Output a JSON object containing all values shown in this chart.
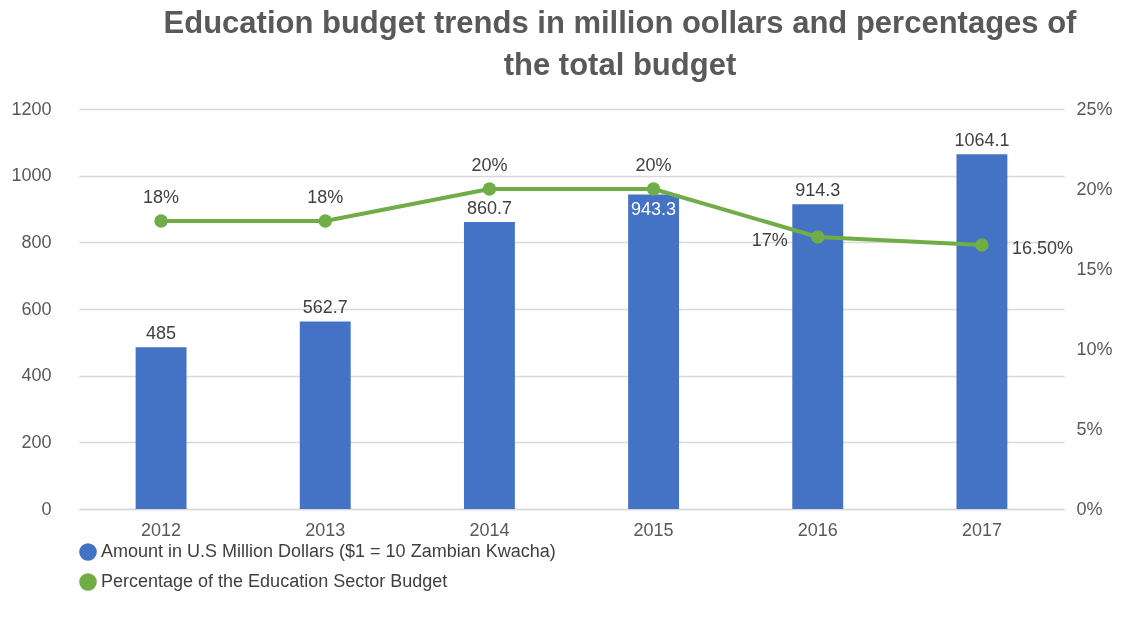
{
  "chart_data": {
    "type": "bar",
    "title": "Education budget trends in million oollars and percentages of the total budget",
    "categories": [
      "2012",
      "2013",
      "2014",
      "2015",
      "2016",
      "2017"
    ],
    "series": [
      {
        "name": "Amount in U.S Million Dollars ($1 = 10 Zambian Kwacha)",
        "color": "#4472c4",
        "values": [
          485,
          562.7,
          860.7,
          943.3,
          914.3,
          1064.1
        ],
        "value_labels": [
          "485",
          "562.7",
          "860.7",
          "943.3",
          "914.3",
          "1064.1"
        ]
      },
      {
        "name": "Percentage of the Education Sector Budget",
        "type": "line",
        "axis": "y2",
        "color": "#70ad47",
        "values": [
          18,
          18,
          20,
          20,
          17,
          16.5
        ],
        "value_labels": [
          "18%",
          "18%",
          "20%",
          "20%",
          "17%",
          "16.50%"
        ]
      }
    ],
    "ylim": [
      0,
      1200
    ],
    "yticks": [
      0,
      200,
      400,
      600,
      800,
      1000,
      1200
    ],
    "y2lim": [
      0,
      25
    ],
    "y2ticks": [
      {
        "value": 0,
        "label": "0%"
      },
      {
        "value": 5,
        "label": "5%"
      },
      {
        "value": 10,
        "label": "10%"
      },
      {
        "value": 15,
        "label": "15%"
      },
      {
        "value": 20,
        "label": "20%"
      },
      {
        "value": 25,
        "label": "25%"
      }
    ],
    "grid": "y",
    "legend": "bottom",
    "marker": "circle",
    "line_style": "solid"
  }
}
